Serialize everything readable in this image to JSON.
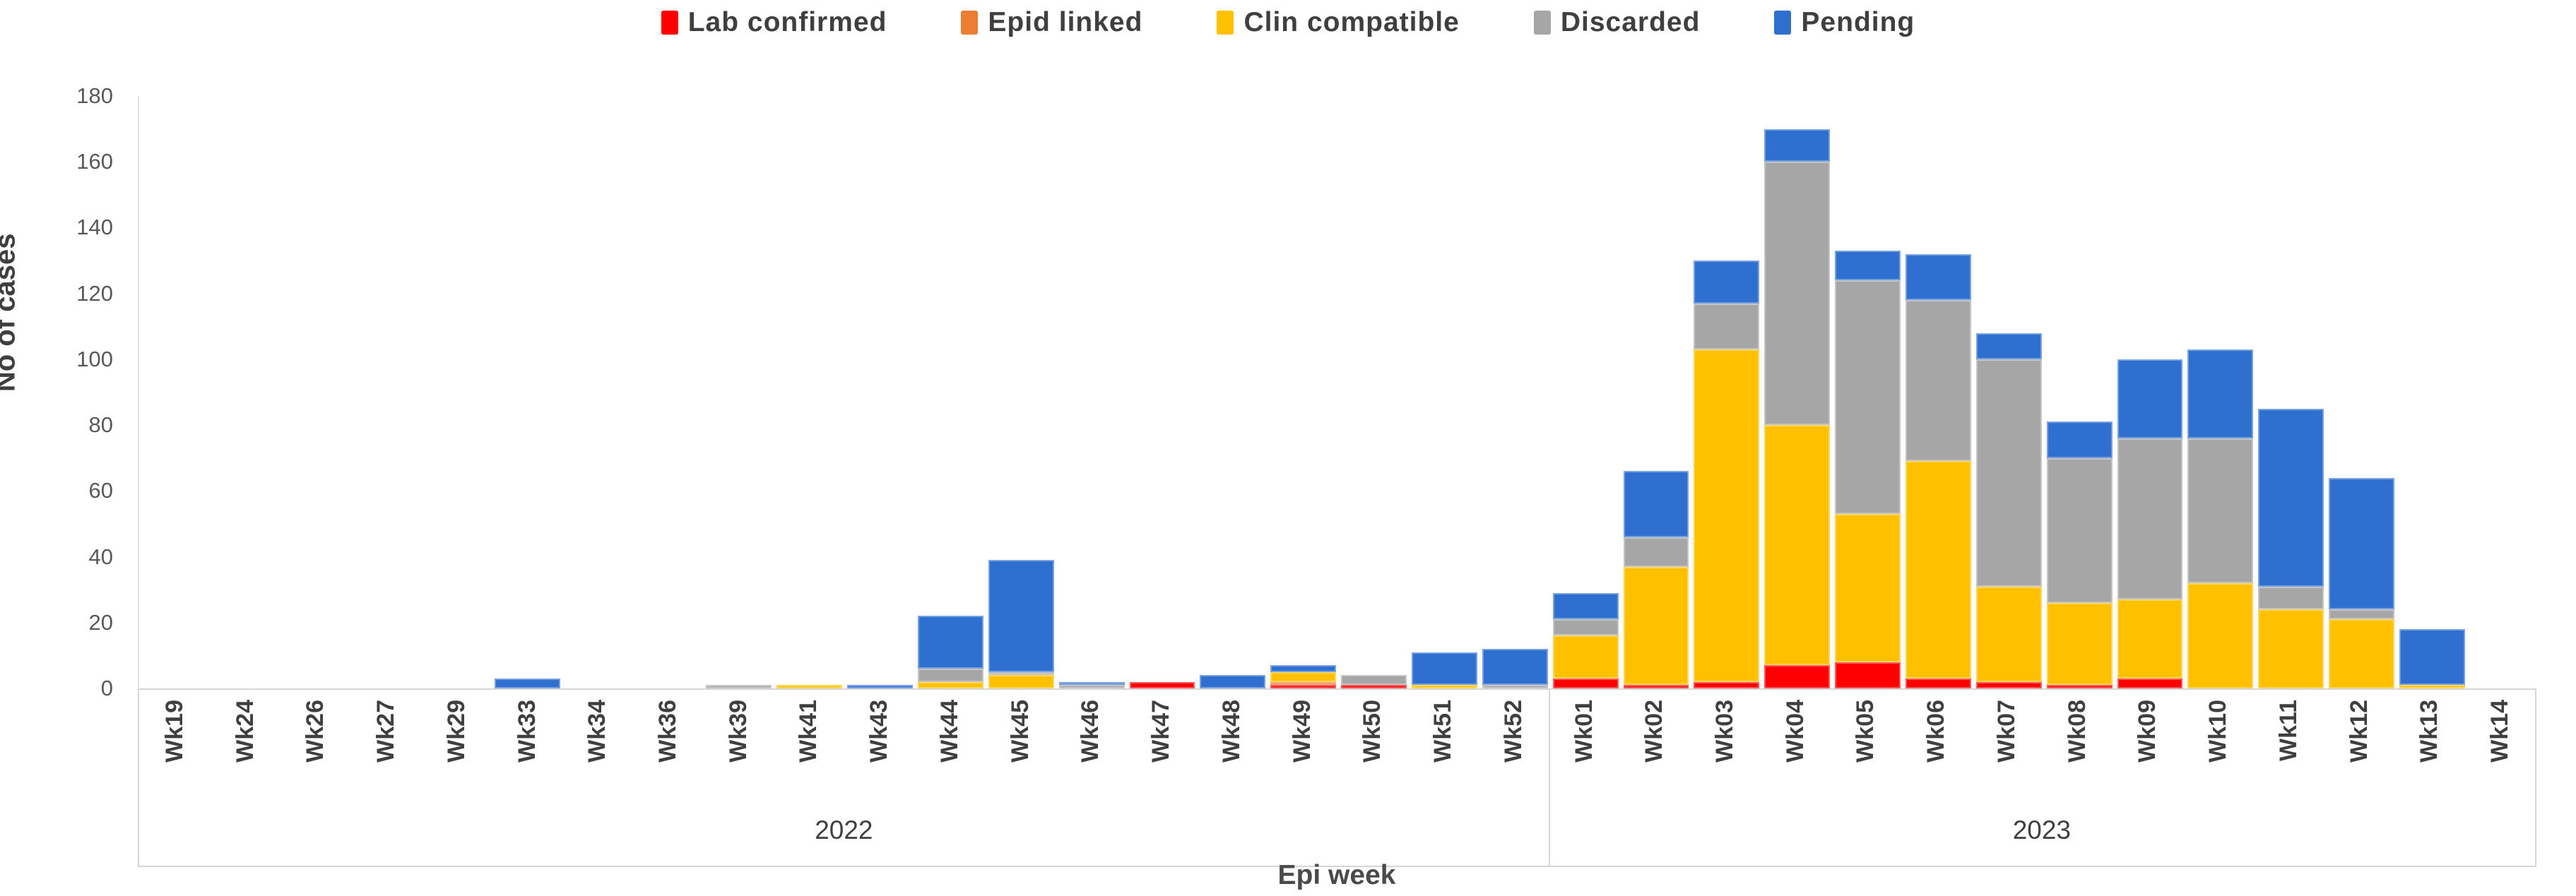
{
  "chart_data": {
    "type": "bar",
    "subtype": "stacked-vertical",
    "title": "",
    "xlabel": "Epi week",
    "ylabel": "No of cases",
    "ylim": [
      0,
      180
    ],
    "ytick_step": 20,
    "yticks": [
      0,
      20,
      40,
      60,
      80,
      100,
      120,
      140,
      160,
      180
    ],
    "grid": false,
    "legend_position": "top",
    "series": [
      {
        "name": "Lab confirmed",
        "key": "lab",
        "color": "#fe0000",
        "textured": false
      },
      {
        "name": "Epid linked",
        "key": "epid",
        "color": "#ed7d31",
        "textured": false
      },
      {
        "name": "Clin compatible",
        "key": "clin",
        "color": "#ffc000",
        "textured": false
      },
      {
        "name": "Discarded",
        "key": "disc",
        "color": "#a6a6a6",
        "textured": true
      },
      {
        "name": "Pending",
        "key": "pend",
        "color": "#2e6fd0",
        "textured": true
      }
    ],
    "groups": [
      {
        "year": "2022",
        "weeks": [
          {
            "label": "Wk19",
            "values": [
              0,
              0,
              0,
              0,
              0
            ]
          },
          {
            "label": "Wk24",
            "values": [
              0,
              0,
              0,
              0,
              0
            ]
          },
          {
            "label": "Wk26",
            "values": [
              0,
              0,
              0,
              0,
              0
            ]
          },
          {
            "label": "Wk27",
            "values": [
              0,
              0,
              0,
              0,
              0
            ]
          },
          {
            "label": "Wk29",
            "values": [
              0,
              0,
              0,
              0,
              0
            ]
          },
          {
            "label": "Wk33",
            "values": [
              0,
              0,
              0,
              0,
              3
            ]
          },
          {
            "label": "Wk34",
            "values": [
              0,
              0,
              0,
              0,
              0
            ]
          },
          {
            "label": "Wk36",
            "values": [
              0,
              0,
              0,
              0,
              0
            ]
          },
          {
            "label": "Wk39",
            "values": [
              0,
              0,
              0,
              1,
              0
            ]
          },
          {
            "label": "Wk41",
            "values": [
              0,
              0,
              1,
              0,
              0
            ]
          },
          {
            "label": "Wk43",
            "values": [
              0,
              0,
              0,
              0,
              1
            ]
          },
          {
            "label": "Wk44",
            "values": [
              0,
              0,
              2,
              4,
              16
            ]
          },
          {
            "label": "Wk45",
            "values": [
              0,
              0,
              4,
              1,
              34
            ]
          },
          {
            "label": "Wk46",
            "values": [
              0,
              0,
              0,
              1,
              1
            ]
          },
          {
            "label": "Wk47",
            "values": [
              2,
              0,
              0,
              0,
              0
            ]
          },
          {
            "label": "Wk48",
            "values": [
              0,
              0,
              0,
              0,
              4
            ]
          },
          {
            "label": "Wk49",
            "values": [
              1,
              1,
              3,
              0,
              2
            ]
          },
          {
            "label": "Wk50",
            "values": [
              1,
              0,
              0,
              3,
              0
            ]
          },
          {
            "label": "Wk51",
            "values": [
              0,
              0,
              1,
              0,
              10
            ]
          },
          {
            "label": "Wk52",
            "values": [
              0,
              0,
              0,
              1,
              11
            ]
          }
        ]
      },
      {
        "year": "2023",
        "weeks": [
          {
            "label": "Wk01",
            "values": [
              3,
              0,
              13,
              5,
              8
            ]
          },
          {
            "label": "Wk02",
            "values": [
              1,
              0,
              36,
              9,
              20
            ]
          },
          {
            "label": "Wk03",
            "values": [
              2,
              0,
              101,
              14,
              13
            ]
          },
          {
            "label": "Wk04",
            "values": [
              7,
              0,
              73,
              80,
              10
            ]
          },
          {
            "label": "Wk05",
            "values": [
              8,
              0,
              45,
              71,
              9
            ]
          },
          {
            "label": "Wk06",
            "values": [
              3,
              0,
              66,
              49,
              14
            ]
          },
          {
            "label": "Wk07",
            "values": [
              2,
              0,
              29,
              69,
              8
            ]
          },
          {
            "label": "Wk08",
            "values": [
              1,
              0,
              25,
              44,
              11
            ]
          },
          {
            "label": "Wk09",
            "values": [
              3,
              0,
              24,
              49,
              24
            ]
          },
          {
            "label": "Wk10",
            "values": [
              0,
              0,
              32,
              44,
              27
            ]
          },
          {
            "label": "Wk11",
            "values": [
              0,
              0,
              24,
              7,
              54
            ]
          },
          {
            "label": "Wk12",
            "values": [
              0,
              0,
              21,
              3,
              40
            ]
          },
          {
            "label": "Wk13",
            "values": [
              0,
              0,
              1,
              0,
              17
            ]
          },
          {
            "label": "Wk14",
            "values": [
              0,
              0,
              0,
              0,
              0
            ]
          }
        ]
      }
    ]
  },
  "colors": {
    "text_dark": "#3f3f3f",
    "tick_text": "#595959",
    "axis_line": "#d6d6d6"
  }
}
